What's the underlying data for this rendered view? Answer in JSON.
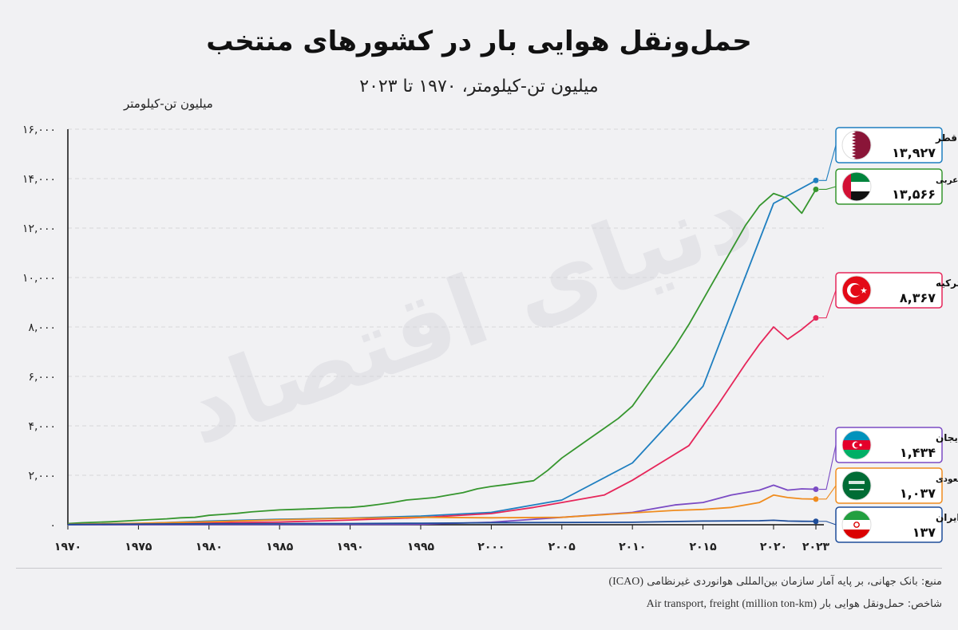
{
  "header": {
    "title": "حمل‌ونقل هوایی بار در کشورهای منتخب",
    "subtitle": "میلیون تن-کیلومتر، ۱۹۷۰ تا ۲۰۲۳"
  },
  "watermark": "دنیای اقتصاد",
  "footer": {
    "source_label": "منبع: بانک جهانی، بر پایه آمار سازمان بین‌المللی هوانوردی غیرنظامی",
    "source_en": "(ICAO)",
    "indicator_label": "شاخص: حمل‌ونقل هوایی بار",
    "indicator_en": "(Air transport, freight (million ton-km"
  },
  "chart_data": {
    "type": "line",
    "title": "حمل‌ونقل هوایی بار در کشورهای منتخب",
    "subtitle": "میلیون تن-کیلومتر، ۱۹۷۰ تا ۲۰۲۳",
    "ylabel": "میلیون تن-کیلومتر",
    "xlabel": "",
    "xlim": [
      1970,
      2023
    ],
    "ylim": [
      0,
      16000
    ],
    "grid": true,
    "legend_position": "right",
    "x_ticks": [
      1970,
      1975,
      1980,
      1985,
      1990,
      1995,
      2000,
      2005,
      2010,
      2015,
      2020,
      2023
    ],
    "x_tick_labels": [
      "۱۹۷۰",
      "۱۹۷۵",
      "۱۹۸۰",
      "۱۹۸۵",
      "۱۹۹۰",
      "۱۹۹۵",
      "۲۰۰۰",
      "۲۰۰۵",
      "۲۰۱۰",
      "۲۰۱۵",
      "۲۰۲۰",
      "۲۰۲۳"
    ],
    "y_ticks": [
      0,
      2000,
      4000,
      6000,
      8000,
      10000,
      12000,
      14000,
      16000
    ],
    "y_tick_labels": [
      "۰",
      "۲,۰۰۰",
      "۴,۰۰۰",
      "۶,۰۰۰",
      "۸,۰۰۰",
      "۱۰,۰۰۰",
      "۱۲,۰۰۰",
      "۱۴,۰۰۰",
      "۱۶,۰۰۰"
    ],
    "series": [
      {
        "name": "قطر",
        "value_label": "۱۳,۹۲۷",
        "color": "#1f7fc0",
        "flag": "qatar-flag-icon",
        "points": [
          [
            1970,
            0
          ],
          [
            1975,
            50
          ],
          [
            1980,
            150
          ],
          [
            1985,
            220
          ],
          [
            1990,
            270
          ],
          [
            1995,
            350
          ],
          [
            2000,
            500
          ],
          [
            2005,
            1000
          ],
          [
            2010,
            2500
          ],
          [
            2015,
            5600
          ],
          [
            2020,
            13000
          ],
          [
            2023,
            13927
          ]
        ]
      },
      {
        "name": "امارات متحده عربی",
        "value_label": "۱۳,۵۶۶",
        "color": "#36962e",
        "flag": "uae-flag-icon",
        "points": [
          [
            1970,
            50
          ],
          [
            1971,
            80
          ],
          [
            1972,
            100
          ],
          [
            1973,
            120
          ],
          [
            1974,
            150
          ],
          [
            1975,
            180
          ],
          [
            1976,
            210
          ],
          [
            1977,
            240
          ],
          [
            1978,
            280
          ],
          [
            1979,
            300
          ],
          [
            1980,
            380
          ],
          [
            1981,
            420
          ],
          [
            1982,
            460
          ],
          [
            1983,
            520
          ],
          [
            1984,
            560
          ],
          [
            1985,
            600
          ],
          [
            1986,
            620
          ],
          [
            1987,
            640
          ],
          [
            1988,
            660
          ],
          [
            1989,
            690
          ],
          [
            1990,
            700
          ],
          [
            1991,
            750
          ],
          [
            1992,
            820
          ],
          [
            1993,
            900
          ],
          [
            1994,
            1000
          ],
          [
            1995,
            1050
          ],
          [
            1996,
            1100
          ],
          [
            1997,
            1200
          ],
          [
            1998,
            1300
          ],
          [
            1999,
            1450
          ],
          [
            2000,
            1550
          ],
          [
            2001,
            1620
          ],
          [
            2002,
            1700
          ],
          [
            2003,
            1780
          ],
          [
            2004,
            2200
          ],
          [
            2005,
            2700
          ],
          [
            2006,
            3100
          ],
          [
            2007,
            3500
          ],
          [
            2008,
            3900
          ],
          [
            2009,
            4300
          ],
          [
            2010,
            4800
          ],
          [
            2011,
            5600
          ],
          [
            2012,
            6400
          ],
          [
            2013,
            7200
          ],
          [
            2014,
            8100
          ],
          [
            2015,
            9100
          ],
          [
            2016,
            10100
          ],
          [
            2017,
            11100
          ],
          [
            2018,
            12100
          ],
          [
            2019,
            12900
          ],
          [
            2020,
            13400
          ],
          [
            2021,
            13200
          ],
          [
            2022,
            12600
          ],
          [
            2023,
            13566
          ]
        ]
      },
      {
        "name": "ترکیه",
        "value_label": "۸,۳۶۷",
        "color": "#e6265a",
        "flag": "turkey-flag-icon",
        "points": [
          [
            1970,
            20
          ],
          [
            1975,
            40
          ],
          [
            1980,
            70
          ],
          [
            1985,
            110
          ],
          [
            1990,
            190
          ],
          [
            1995,
            290
          ],
          [
            2000,
            450
          ],
          [
            2003,
            700
          ],
          [
            2005,
            900
          ],
          [
            2008,
            1200
          ],
          [
            2010,
            1800
          ],
          [
            2012,
            2500
          ],
          [
            2014,
            3200
          ],
          [
            2016,
            4800
          ],
          [
            2018,
            6500
          ],
          [
            2019,
            7300
          ],
          [
            2020,
            8000
          ],
          [
            2021,
            7500
          ],
          [
            2022,
            7900
          ],
          [
            2023,
            8367
          ]
        ]
      },
      {
        "name": "آذربایجان",
        "value_label": "۱,۴۳۴",
        "color": "#7b4bc4",
        "flag": "azerbaijan-flag-icon",
        "points": [
          [
            1970,
            0
          ],
          [
            1995,
            20
          ],
          [
            2000,
            100
          ],
          [
            2005,
            300
          ],
          [
            2010,
            500
          ],
          [
            2013,
            800
          ],
          [
            2015,
            900
          ],
          [
            2017,
            1200
          ],
          [
            2019,
            1400
          ],
          [
            2020,
            1600
          ],
          [
            2021,
            1400
          ],
          [
            2022,
            1450
          ],
          [
            2023,
            1434
          ]
        ]
      },
      {
        "name": "عربستان سعودی",
        "value_label": "۱,۰۳۷",
        "color": "#f08c1e",
        "flag": "saudi-flag-icon",
        "points": [
          [
            1970,
            20
          ],
          [
            1975,
            60
          ],
          [
            1980,
            120
          ],
          [
            1985,
            200
          ],
          [
            1990,
            260
          ],
          [
            1995,
            300
          ],
          [
            2000,
            280
          ],
          [
            2005,
            300
          ],
          [
            2010,
            480
          ],
          [
            2013,
            580
          ],
          [
            2015,
            620
          ],
          [
            2017,
            700
          ],
          [
            2019,
            900
          ],
          [
            2020,
            1200
          ],
          [
            2021,
            1100
          ],
          [
            2022,
            1050
          ],
          [
            2023,
            1037
          ]
        ]
      },
      {
        "name": "ایران",
        "value_label": "۱۳۷",
        "color": "#1e4d9a",
        "flag": "iran-flag-icon",
        "points": [
          [
            1970,
            10
          ],
          [
            1975,
            30
          ],
          [
            1980,
            40
          ],
          [
            1985,
            45
          ],
          [
            1990,
            50
          ],
          [
            1995,
            60
          ],
          [
            2000,
            80
          ],
          [
            2005,
            90
          ],
          [
            2010,
            100
          ],
          [
            2015,
            150
          ],
          [
            2019,
            160
          ],
          [
            2020,
            180
          ],
          [
            2021,
            150
          ],
          [
            2022,
            140
          ],
          [
            2023,
            137
          ]
        ]
      }
    ]
  }
}
